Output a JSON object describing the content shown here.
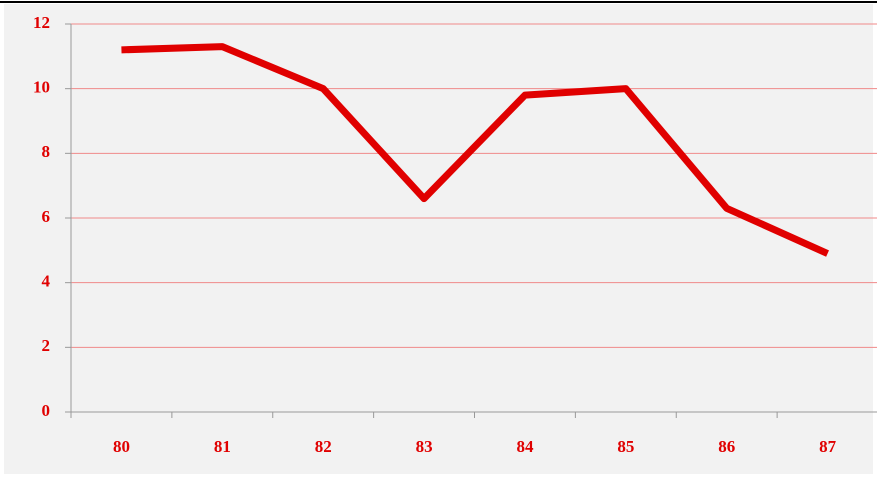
{
  "chart_data": {
    "type": "line",
    "categories": [
      "80",
      "81",
      "82",
      "83",
      "84",
      "85",
      "86",
      "87"
    ],
    "series": [
      {
        "color": "#e00000",
        "values": [
          11.2,
          11.3,
          10.0,
          6.6,
          9.8,
          10.0,
          6.3,
          4.9
        ]
      }
    ],
    "ylim": [
      0,
      12
    ],
    "yticks": [
      0,
      2,
      4,
      6,
      8,
      10,
      12
    ],
    "grid": true
  }
}
